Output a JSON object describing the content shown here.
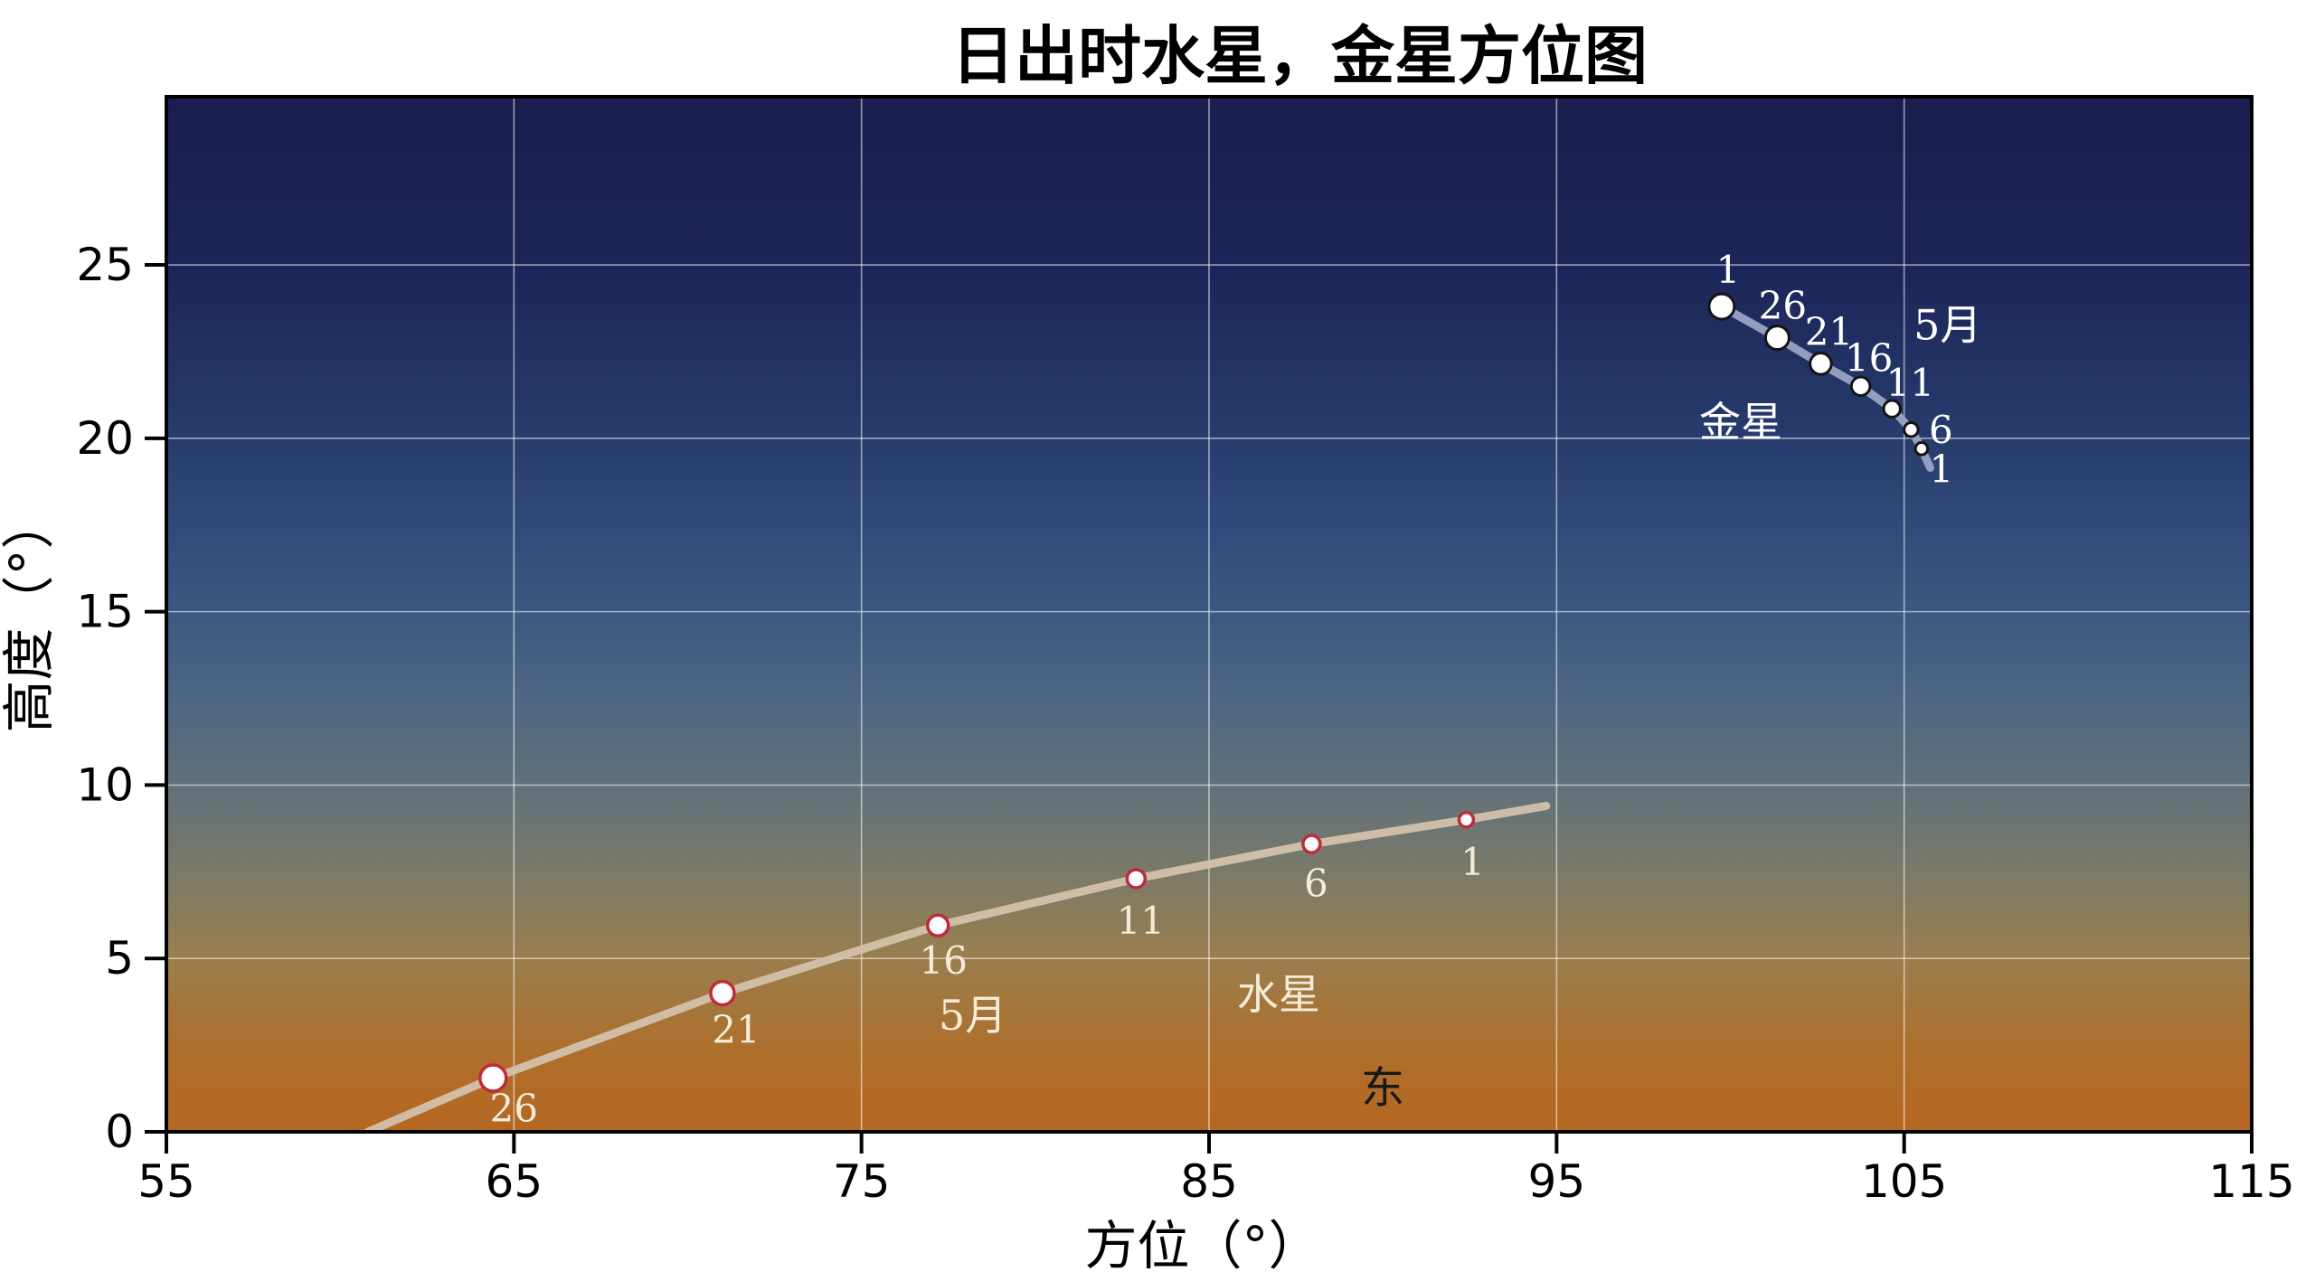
{
  "chart_data": {
    "type": "scatter",
    "title": "日出时水星，金星方位图",
    "xlabel": "方位（°）",
    "ylabel": "高度（°）",
    "xlim": [
      55,
      115
    ],
    "ylim": [
      0,
      29.85
    ],
    "xticks": [
      55,
      65,
      75,
      85,
      95,
      105,
      115
    ],
    "yticks": [
      0,
      5,
      10,
      15,
      20,
      25
    ],
    "grid": true,
    "grid_color": "rgba(255,255,255,0.55)",
    "axis_color": "#000000",
    "sky_gradient": [
      {
        "stop": 0.0,
        "color": "#191d4f"
      },
      {
        "stop": 0.16,
        "color": "#1c2458"
      },
      {
        "stop": 0.33,
        "color": "#273c6d"
      },
      {
        "stop": 0.41,
        "color": "#31497a"
      },
      {
        "stop": 0.5,
        "color": "#3d5881"
      },
      {
        "stop": 0.58,
        "color": "#4d6682"
      },
      {
        "stop": 0.66,
        "color": "#5f707b"
      },
      {
        "stop": 0.75,
        "color": "#7b7a69"
      },
      {
        "stop": 0.83,
        "color": "#997e4e"
      },
      {
        "stop": 0.92,
        "color": "#ae6f2c"
      },
      {
        "stop": 1.0,
        "color": "#b56721"
      }
    ],
    "series": [
      {
        "id": "venus",
        "label": "金星",
        "month": "5月",
        "line_color": "#9aa3c4",
        "line_width": 9,
        "marker_fill": "#ffffff",
        "marker_edge": "#141414",
        "marker_edge_width": 3,
        "label_color": "#ffffff",
        "points": [
          {
            "date": "1",
            "az": 99.75,
            "alt": 23.8,
            "r": 14.0,
            "dx": 7,
            "dy": -26
          },
          {
            "date": "26",
            "az": 101.35,
            "alt": 22.9,
            "r": 13.0,
            "dx": 6,
            "dy": -21
          },
          {
            "date": "21",
            "az": 102.6,
            "alt": 22.15,
            "r": 11.8,
            "dx": 9,
            "dy": -21
          },
          {
            "date": "16",
            "az": 103.75,
            "alt": 21.5,
            "r": 10.3,
            "dx": 9,
            "dy": -17
          },
          {
            "date": "11",
            "az": 104.65,
            "alt": 20.85,
            "r": 9.2,
            "dx": 20,
            "dy": -14
          },
          {
            "date": "6",
            "az": 105.2,
            "alt": 20.25,
            "r": 7.7,
            "dx": 33,
            "dy": 15
          },
          {
            "date": "1",
            "az": 105.5,
            "alt": 19.7,
            "r": 6.8,
            "dx": 22,
            "dy": 37
          }
        ],
        "line_extend": [
          {
            "az": 105.75,
            "alt": 19.15
          }
        ]
      },
      {
        "id": "mercury",
        "label": "水星",
        "month": "5月",
        "line_color": "#d3c1ab",
        "line_width": 9,
        "marker_fill": "#ffffff",
        "marker_edge": "#c02a38",
        "marker_edge_width": 3.5,
        "label_color": "#f5ecd8",
        "line_prepend": [
          {
            "az": 60.8,
            "alt": 0.0
          }
        ],
        "points": [
          {
            "date": "26",
            "az": 64.4,
            "alt": 1.55,
            "r": 14.5,
            "dx": 23,
            "dy": 48
          },
          {
            "date": "21",
            "az": 71.0,
            "alt": 4.0,
            "r": 13.0,
            "dx": 15,
            "dy": 55
          },
          {
            "date": "16",
            "az": 77.2,
            "alt": 5.95,
            "r": 11.5,
            "dx": 6,
            "dy": 53
          },
          {
            "date": "11",
            "az": 82.9,
            "alt": 7.3,
            "r": 10.0,
            "dx": 5,
            "dy": 61
          },
          {
            "date": "6",
            "az": 87.95,
            "alt": 8.3,
            "r": 9.5,
            "dx": 5,
            "dy": 58
          },
          {
            "date": "1",
            "az": 92.4,
            "alt": 9.0,
            "r": 8.0,
            "dx": 7,
            "dy": 61
          }
        ],
        "line_extend": [
          {
            "az": 94.7,
            "alt": 9.4
          }
        ]
      }
    ],
    "annotations": [
      {
        "name": "venus-month-label",
        "text": "5月",
        "az": 106.25,
        "alt": 22.85,
        "color": "#ffffff",
        "size": 46
      },
      {
        "name": "venus-name-label",
        "text": "金星",
        "az": 100.3,
        "alt": 20.05,
        "color": "#ffffff",
        "size": 46
      },
      {
        "name": "mercury-month-label",
        "text": "5月",
        "az": 78.2,
        "alt": 2.95,
        "color": "#f5ecd8",
        "size": 46
      },
      {
        "name": "mercury-name-label",
        "text": "水星",
        "az": 87.0,
        "alt": 3.55,
        "color": "#f5ecd8",
        "size": 46
      },
      {
        "name": "east-label",
        "text": "东",
        "az": 90.0,
        "alt": 0.85,
        "color": "#181818",
        "size": 48
      }
    ]
  }
}
